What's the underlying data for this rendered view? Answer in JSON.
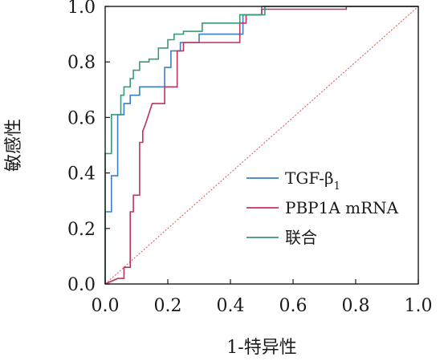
{
  "chart_data": {
    "type": "line",
    "xlabel": "1-特异性",
    "ylabel": "敏感性",
    "xlim": [
      0,
      1
    ],
    "ylim": [
      0,
      1
    ],
    "xticks": [
      "0.0",
      "0.2",
      "0.4",
      "0.6",
      "0.8",
      "1.0"
    ],
    "yticks": [
      "0.0",
      "0.2",
      "0.4",
      "0.6",
      "0.8",
      "1.0"
    ],
    "grid": false,
    "legend_position": "lower-right",
    "reference_line": {
      "style": "dotted",
      "color": "#e06060",
      "x": [
        0,
        1
      ],
      "y": [
        0,
        1
      ]
    },
    "series": [
      {
        "name": "TGF-β1",
        "legend_main": "TGF-β",
        "legend_sub": "1",
        "color": "#3a7fc1",
        "x": [
          0,
          0,
          0.02,
          0.02,
          0.04,
          0.04,
          0.06,
          0.06,
          0.08,
          0.08,
          0.11,
          0.11,
          0.19,
          0.19,
          0.21,
          0.21,
          0.24,
          0.24,
          0.3,
          0.3,
          0.44,
          0.44,
          0.5,
          0.5,
          1.0
        ],
        "y": [
          0,
          0.26,
          0.26,
          0.39,
          0.39,
          0.61,
          0.61,
          0.65,
          0.65,
          0.68,
          0.68,
          0.71,
          0.71,
          0.78,
          0.78,
          0.84,
          0.84,
          0.87,
          0.87,
          0.9,
          0.9,
          0.97,
          0.97,
          1.0,
          1.0
        ]
      },
      {
        "name": "PBP1A mRNA",
        "color": "#c0335f",
        "x": [
          0,
          0.04,
          0.06,
          0.06,
          0.08,
          0.08,
          0.09,
          0.09,
          0.11,
          0.11,
          0.12,
          0.12,
          0.13,
          0.15,
          0.19,
          0.19,
          0.23,
          0.23,
          0.25,
          0.25,
          0.43,
          0.43,
          0.45,
          0.45,
          0.5,
          0.5,
          0.77,
          0.77,
          1.0
        ],
        "y": [
          0,
          0.02,
          0.02,
          0.06,
          0.06,
          0.26,
          0.26,
          0.32,
          0.32,
          0.51,
          0.51,
          0.55,
          0.58,
          0.65,
          0.65,
          0.71,
          0.71,
          0.84,
          0.84,
          0.87,
          0.87,
          0.94,
          0.94,
          0.97,
          0.97,
          0.99,
          0.99,
          1.0,
          1.0
        ]
      },
      {
        "name": "联合",
        "color": "#3b9a74",
        "x": [
          0,
          0,
          0.02,
          0.02,
          0.05,
          0.05,
          0.06,
          0.06,
          0.08,
          0.08,
          0.09,
          0.09,
          0.11,
          0.11,
          0.14,
          0.14,
          0.17,
          0.17,
          0.2,
          0.2,
          0.22,
          0.22,
          0.25,
          0.25,
          0.31,
          0.31,
          0.43,
          0.43,
          0.51,
          0.51,
          1.0
        ],
        "y": [
          0,
          0.47,
          0.47,
          0.61,
          0.61,
          0.68,
          0.68,
          0.71,
          0.71,
          0.74,
          0.74,
          0.77,
          0.77,
          0.8,
          0.8,
          0.81,
          0.81,
          0.85,
          0.85,
          0.88,
          0.88,
          0.9,
          0.9,
          0.91,
          0.91,
          0.94,
          0.94,
          0.97,
          0.97,
          1.0,
          1.0
        ]
      }
    ]
  }
}
